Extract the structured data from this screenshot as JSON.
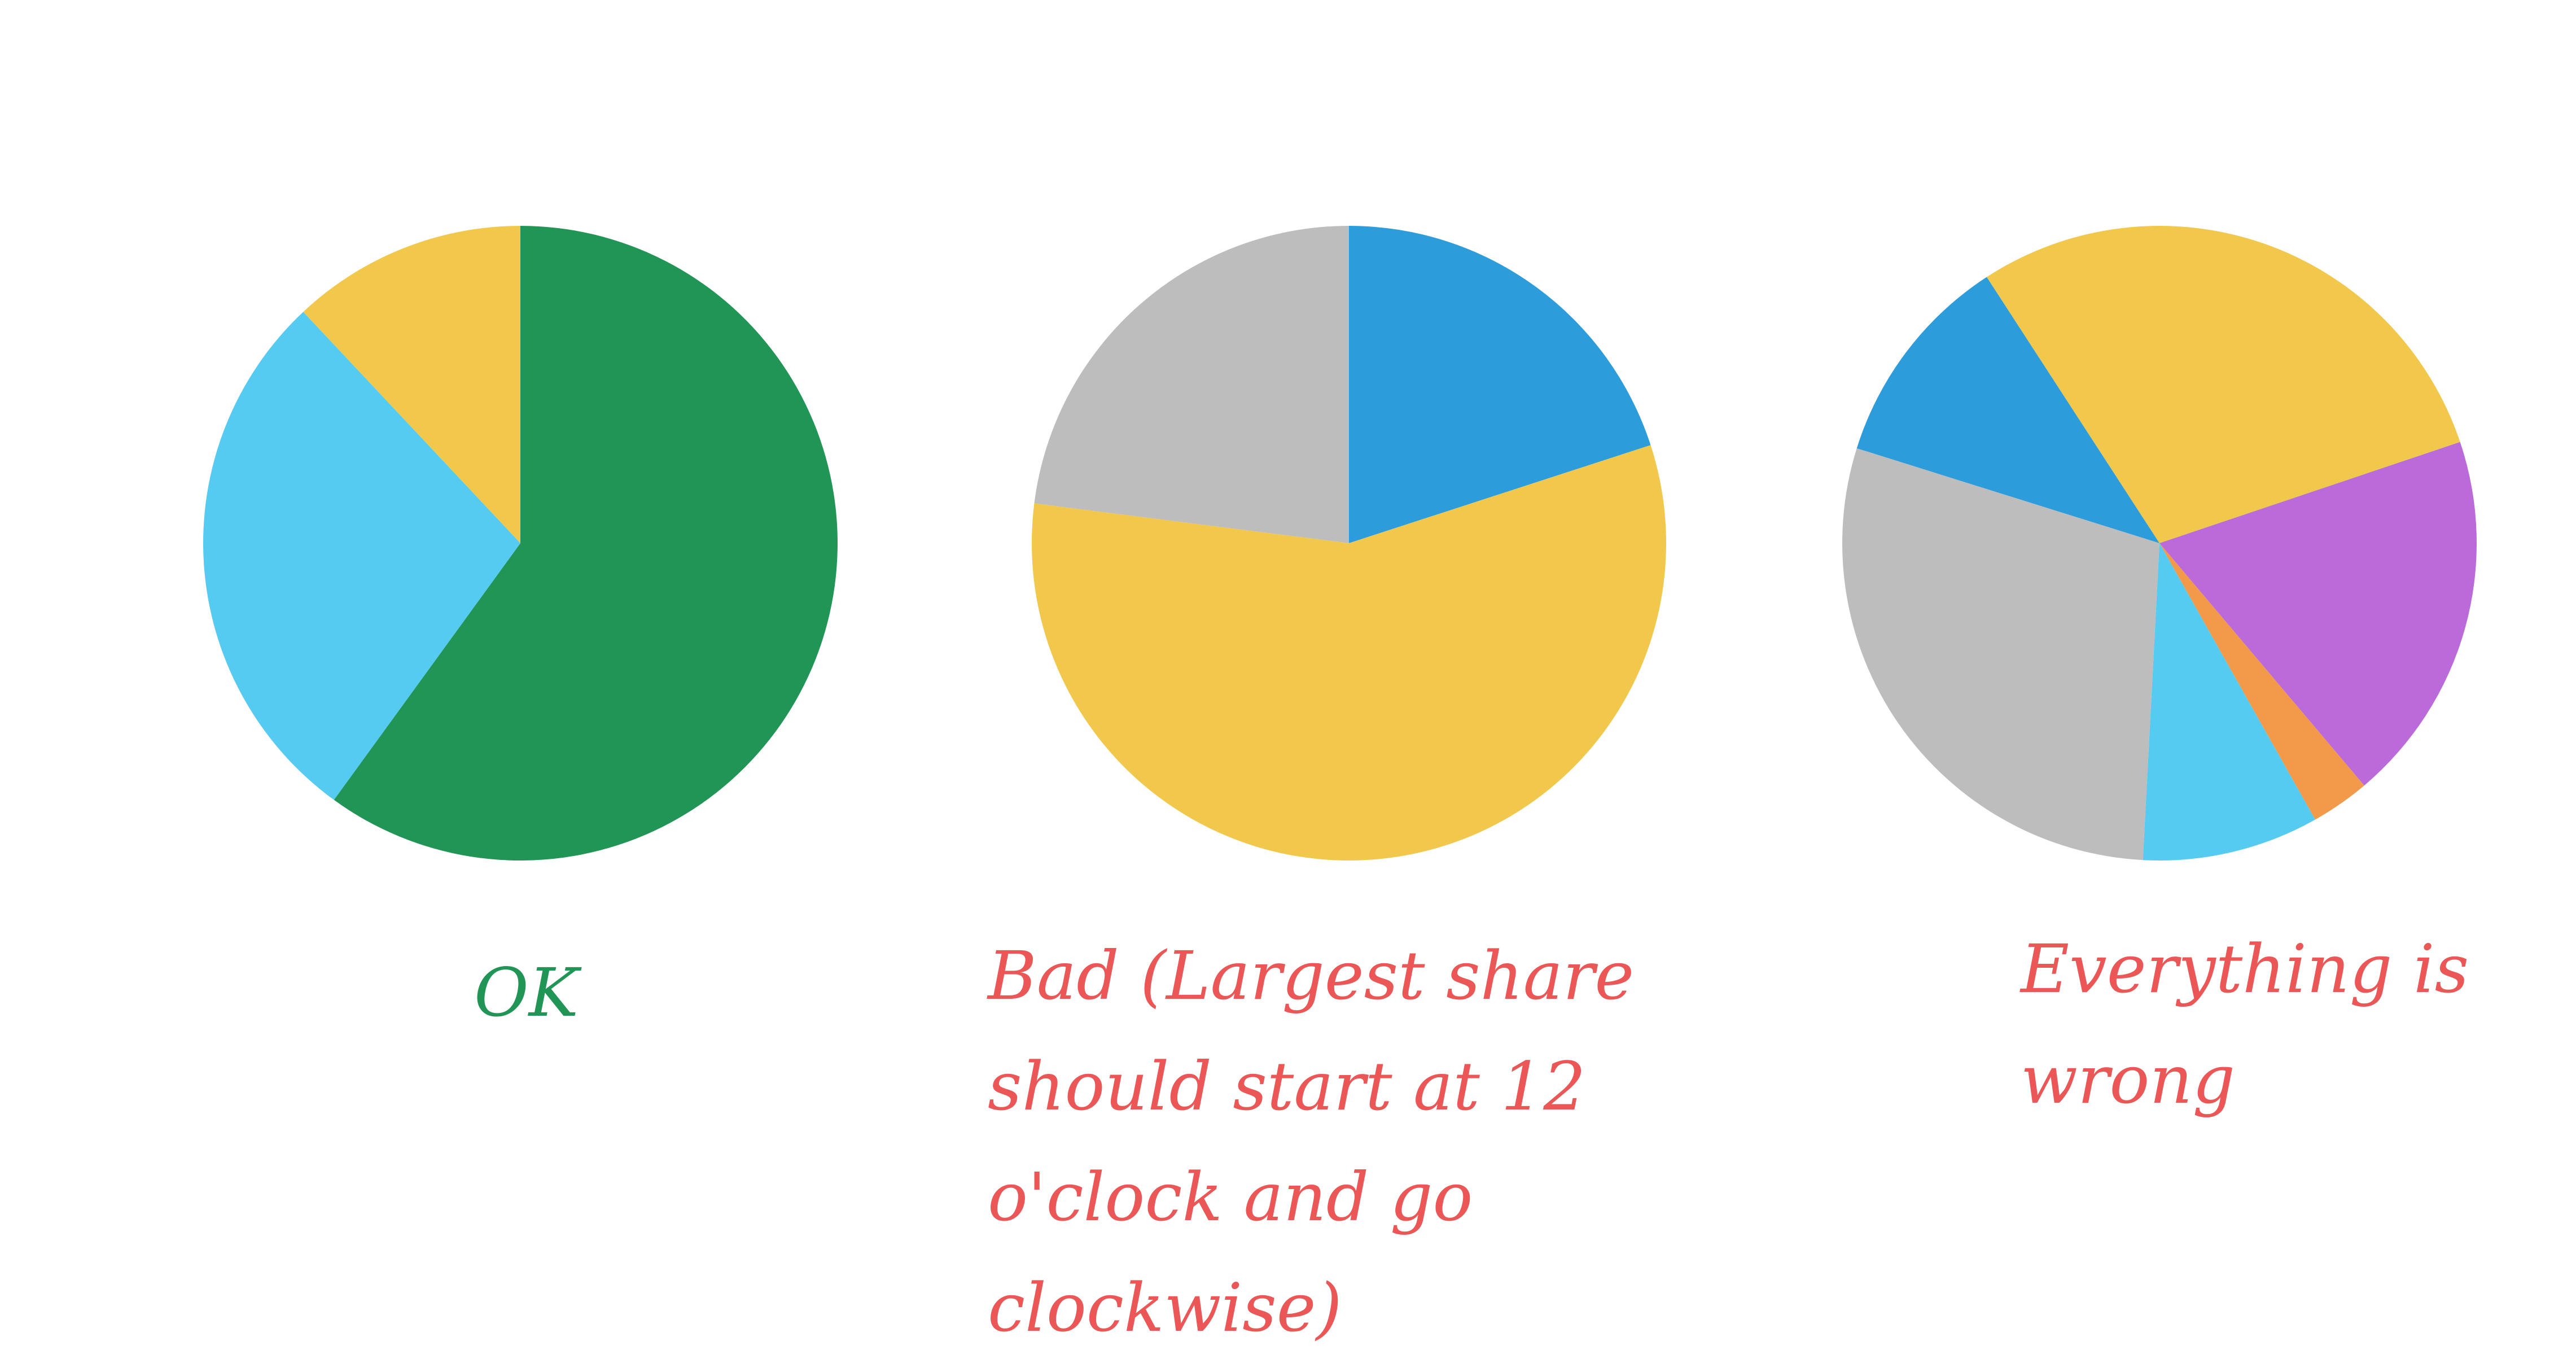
{
  "chart_data": [
    {
      "type": "pie",
      "start_angle_deg": 0,
      "direction": "clockwise",
      "values": [
        60,
        28,
        12
      ],
      "colors": [
        "#219555",
        "#56CBF2",
        "#F2C84C"
      ],
      "caption": "OK",
      "caption_color": "#219555"
    },
    {
      "type": "pie",
      "start_angle_deg": 0,
      "direction": "clockwise",
      "values": [
        20,
        57,
        23
      ],
      "colors": [
        "#2D9CDB",
        "#F2C84C",
        "#BDBDBD"
      ],
      "caption": "Bad (Largest share should start at 12 o'clock and go clockwise)",
      "caption_color": "#EB5757"
    },
    {
      "type": "pie",
      "start_angle_deg": -33,
      "direction": "clockwise",
      "values": [
        29,
        19,
        3,
        9,
        29,
        11
      ],
      "colors": [
        "#F2C84C",
        "#BB6BD9",
        "#F2994A",
        "#56CBF2",
        "#BDBDBD",
        "#2D9CDB"
      ],
      "caption": "Everything is wrong",
      "caption_color": "#EB5757"
    }
  ]
}
